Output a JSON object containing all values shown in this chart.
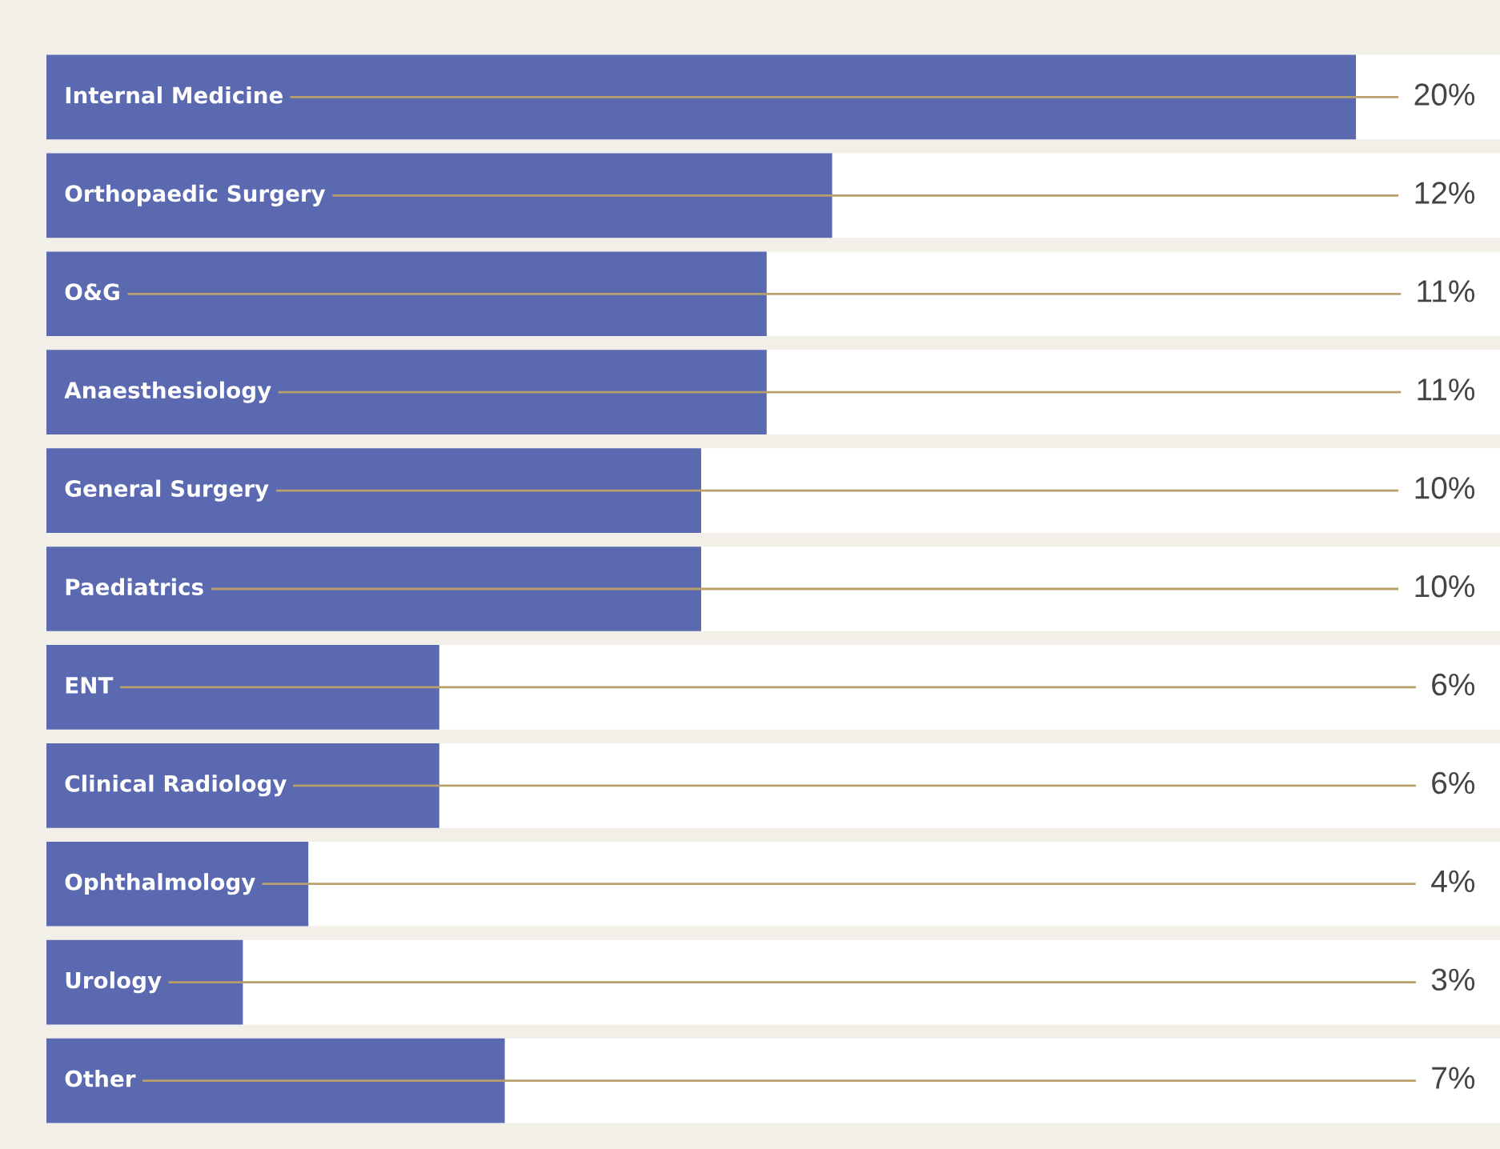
{
  "chart_data": {
    "type": "bar",
    "orientation": "horizontal",
    "categories": [
      "Internal Medicine",
      "Orthopaedic Surgery",
      "O&G",
      "Anaesthesiology",
      "General Surgery",
      "Paediatrics",
      "ENT",
      "Clinical Radiology",
      "Ophthalmology",
      "Urology",
      "Other"
    ],
    "values": [
      20,
      12,
      11,
      11,
      10,
      10,
      6,
      6,
      4,
      3,
      7
    ],
    "value_labels": [
      "20%",
      "12%",
      "11%",
      "11%",
      "10%",
      "10%",
      "6%",
      "6%",
      "4%",
      "3%",
      "7%"
    ],
    "color": "#5a69b0",
    "xlim": [
      0,
      22.2
    ]
  }
}
